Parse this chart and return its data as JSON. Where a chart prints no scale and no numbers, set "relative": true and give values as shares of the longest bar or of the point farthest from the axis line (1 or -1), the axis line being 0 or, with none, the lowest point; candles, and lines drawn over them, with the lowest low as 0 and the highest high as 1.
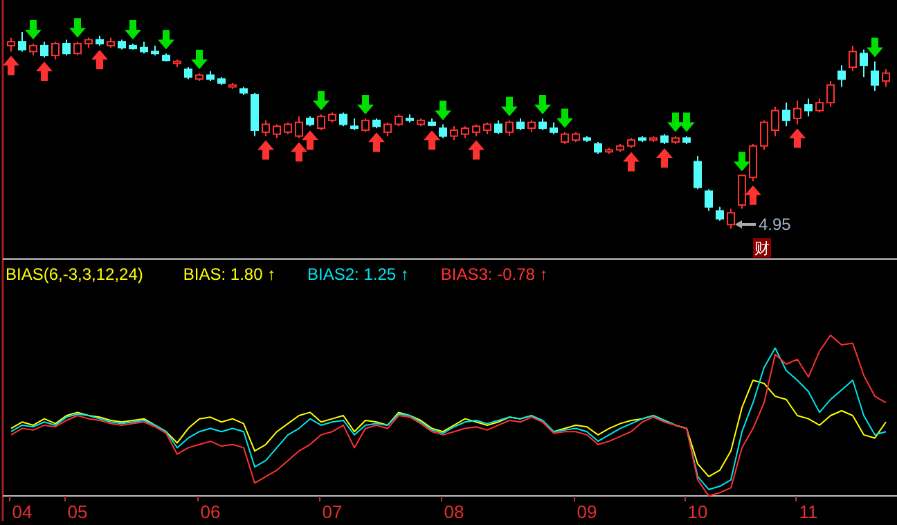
{
  "chart_data": [
    {
      "type": "candlestick",
      "relative": true,
      "tick_labels": false,
      "categories": [
        null,
        null,
        null,
        null,
        null,
        null,
        null,
        null,
        null,
        null,
        null,
        null,
        null,
        null,
        null,
        null,
        null,
        null,
        null,
        null,
        null,
        null,
        null,
        null,
        null,
        null,
        null,
        null,
        null,
        null,
        null,
        null,
        null,
        null,
        null,
        null,
        null,
        null,
        null,
        null,
        null,
        null,
        null,
        null,
        null,
        null,
        null,
        null,
        null,
        null,
        null,
        null,
        null,
        null,
        null,
        null,
        null,
        null,
        null,
        null,
        null,
        null,
        null,
        null,
        null,
        null,
        null,
        null,
        null,
        null,
        null,
        null,
        null,
        null,
        null,
        null,
        null,
        null,
        null,
        null
      ],
      "ohlc": [
        [
          0.93,
          0.97,
          0.9,
          0.95
        ],
        [
          0.95,
          1,
          0.9,
          0.91
        ],
        [
          0.9,
          0.94,
          0.88,
          0.93
        ],
        [
          0.93,
          0.95,
          0.87,
          0.88
        ],
        [
          0.88,
          0.95,
          0.86,
          0.94
        ],
        [
          0.94,
          0.96,
          0.88,
          0.89
        ],
        [
          0.89,
          0.95,
          0.88,
          0.94
        ],
        [
          0.94,
          0.97,
          0.92,
          0.96
        ],
        [
          0.96,
          0.98,
          0.93,
          0.94
        ],
        [
          0.93,
          0.97,
          0.92,
          0.95
        ],
        [
          0.95,
          0.96,
          0.91,
          0.92
        ],
        [
          0.93,
          0.94,
          0.91,
          0.915
        ],
        [
          0.92,
          0.95,
          0.89,
          0.9
        ],
        [
          0.9,
          0.93,
          0.88,
          0.89
        ],
        [
          0.88,
          0.89,
          0.85,
          0.855
        ],
        [
          0.84,
          0.86,
          0.82,
          0.85
        ],
        [
          0.81,
          0.82,
          0.76,
          0.77
        ],
        [
          0.76,
          0.79,
          0.75,
          0.78
        ],
        [
          0.78,
          0.8,
          0.75,
          0.76
        ],
        [
          0.76,
          0.77,
          0.73,
          0.74
        ],
        [
          0.72,
          0.74,
          0.71,
          0.73
        ],
        [
          0.71,
          0.72,
          0.68,
          0.69
        ],
        [
          0.68,
          0.69,
          0.47,
          0.5
        ],
        [
          0.49,
          0.55,
          0.47,
          0.53
        ],
        [
          0.48,
          0.53,
          0.46,
          0.52
        ],
        [
          0.49,
          0.54,
          0.48,
          0.53
        ],
        [
          0.47,
          0.57,
          0.46,
          0.54
        ],
        [
          0.56,
          0.57,
          0.52,
          0.53
        ],
        [
          0.51,
          0.58,
          0.5,
          0.57
        ],
        [
          0.55,
          0.59,
          0.54,
          0.58
        ],
        [
          0.58,
          0.59,
          0.52,
          0.53
        ],
        [
          0.52,
          0.56,
          0.5,
          0.51
        ],
        [
          0.5,
          0.56,
          0.49,
          0.55
        ],
        [
          0.55,
          0.56,
          0.51,
          0.52
        ],
        [
          0.49,
          0.54,
          0.47,
          0.53
        ],
        [
          0.53,
          0.58,
          0.52,
          0.57
        ],
        [
          0.56,
          0.58,
          0.54,
          0.55
        ],
        [
          0.53,
          0.56,
          0.52,
          0.55
        ],
        [
          0.54,
          0.56,
          0.52,
          0.525
        ],
        [
          0.51,
          0.53,
          0.46,
          0.47
        ],
        [
          0.47,
          0.52,
          0.45,
          0.5
        ],
        [
          0.48,
          0.52,
          0.46,
          0.51
        ],
        [
          0.49,
          0.53,
          0.47,
          0.52
        ],
        [
          0.5,
          0.54,
          0.48,
          0.53
        ],
        [
          0.53,
          0.55,
          0.48,
          0.49
        ],
        [
          0.49,
          0.55,
          0.47,
          0.54
        ],
        [
          0.54,
          0.56,
          0.5,
          0.51
        ],
        [
          0.51,
          0.55,
          0.49,
          0.54
        ],
        [
          0.54,
          0.56,
          0.5,
          0.51
        ],
        [
          0.51,
          0.54,
          0.48,
          0.49
        ],
        [
          0.44,
          0.49,
          0.43,
          0.48
        ],
        [
          0.45,
          0.49,
          0.44,
          0.48
        ],
        [
          0.46,
          0.47,
          0.44,
          0.45
        ],
        [
          0.43,
          0.44,
          0.38,
          0.39
        ],
        [
          0.39,
          0.41,
          0.38,
          0.4
        ],
        [
          0.4,
          0.43,
          0.39,
          0.42
        ],
        [
          0.42,
          0.46,
          0.41,
          0.45
        ],
        [
          0.46,
          0.47,
          0.44,
          0.45
        ],
        [
          0.45,
          0.47,
          0.44,
          0.46
        ],
        [
          0.47,
          0.48,
          0.43,
          0.44
        ],
        [
          0.44,
          0.47,
          0.43,
          0.46
        ],
        [
          0.46,
          0.47,
          0.43,
          0.44
        ],
        [
          0.34,
          0.37,
          0.2,
          0.21
        ],
        [
          0.19,
          0.2,
          0.09,
          0.11
        ],
        [
          0.09,
          0.11,
          0.04,
          0.05
        ],
        [
          0.02,
          0.1,
          0,
          0.08
        ],
        [
          0.12,
          0.27,
          0.1,
          0.27
        ],
        [
          0.26,
          0.43,
          0.24,
          0.42
        ],
        [
          0.42,
          0.55,
          0.4,
          0.54
        ],
        [
          0.5,
          0.62,
          0.47,
          0.6
        ],
        [
          0.6,
          0.64,
          0.52,
          0.55
        ],
        [
          0.56,
          0.65,
          0.53,
          0.61
        ],
        [
          0.63,
          0.66,
          0.57,
          0.6
        ],
        [
          0.6,
          0.66,
          0.59,
          0.64
        ],
        [
          0.64,
          0.75,
          0.62,
          0.73
        ],
        [
          0.8,
          0.83,
          0.72,
          0.76
        ],
        [
          0.82,
          0.93,
          0.8,
          0.9
        ],
        [
          0.89,
          0.91,
          0.77,
          0.83
        ],
        [
          0.8,
          0.85,
          0.7,
          0.73
        ],
        [
          0.75,
          0.81,
          0.72,
          0.79
        ]
      ],
      "annotations": [
        "4.95",
        "财"
      ]
    },
    {
      "type": "line",
      "relative": true,
      "tick_labels": "x",
      "title": "BIAS(6,-3,3,12,24)",
      "legend": "top left",
      "categories": [
        null,
        "04",
        null,
        null,
        null,
        null,
        "05",
        null,
        null,
        null,
        null,
        null,
        null,
        null,
        null,
        null,
        null,
        null,
        "06",
        null,
        null,
        null,
        null,
        null,
        null,
        null,
        null,
        null,
        null,
        "07",
        null,
        null,
        null,
        null,
        null,
        null,
        null,
        null,
        null,
        null,
        "08",
        null,
        null,
        null,
        null,
        null,
        null,
        null,
        null,
        null,
        null,
        null,
        "09",
        null,
        null,
        null,
        null,
        null,
        null,
        null,
        null,
        null,
        "10",
        null,
        null,
        null,
        null,
        null,
        null,
        null,
        null,
        null,
        "11",
        null,
        null,
        null,
        null,
        null,
        null,
        null
      ],
      "series": [
        {
          "name": "BIAS: 1.80 ↑",
          "color": "#ffff00",
          "values": [
            0.42,
            0.46,
            0.44,
            0.48,
            0.45,
            0.5,
            0.52,
            0.5,
            0.49,
            0.47,
            0.46,
            0.47,
            0.48,
            0.44,
            0.4,
            0.33,
            0.42,
            0.48,
            0.49,
            0.46,
            0.48,
            0.45,
            0.28,
            0.32,
            0.4,
            0.45,
            0.5,
            0.52,
            0.46,
            0.48,
            0.5,
            0.4,
            0.47,
            0.46,
            0.44,
            0.52,
            0.5,
            0.47,
            0.42,
            0.4,
            0.44,
            0.48,
            0.46,
            0.44,
            0.46,
            0.49,
            0.48,
            0.5,
            0.46,
            0.4,
            0.42,
            0.44,
            0.43,
            0.38,
            0.42,
            0.45,
            0.47,
            0.48,
            0.5,
            0.47,
            0.44,
            0.42,
            0.2,
            0.12,
            0.16,
            0.28,
            0.55,
            0.72,
            0.7,
            0.62,
            0.6,
            0.5,
            0.48,
            0.44,
            0.5,
            0.53,
            0.5,
            0.38,
            0.36,
            0.46
          ]
        },
        {
          "name": "BIAS2: 1.25 ↑",
          "color": "#00e5ee",
          "values": [
            0.4,
            0.44,
            0.43,
            0.46,
            0.44,
            0.49,
            0.51,
            0.5,
            0.48,
            0.46,
            0.45,
            0.46,
            0.47,
            0.44,
            0.4,
            0.3,
            0.36,
            0.4,
            0.42,
            0.4,
            0.42,
            0.4,
            0.18,
            0.22,
            0.3,
            0.38,
            0.42,
            0.48,
            0.44,
            0.46,
            0.47,
            0.38,
            0.44,
            0.45,
            0.44,
            0.51,
            0.5,
            0.46,
            0.41,
            0.39,
            0.43,
            0.46,
            0.47,
            0.45,
            0.47,
            0.49,
            0.48,
            0.5,
            0.47,
            0.4,
            0.41,
            0.42,
            0.4,
            0.34,
            0.38,
            0.42,
            0.45,
            0.48,
            0.5,
            0.47,
            0.44,
            0.42,
            0.12,
            0.04,
            0.06,
            0.1,
            0.4,
            0.58,
            0.8,
            0.92,
            0.78,
            0.72,
            0.65,
            0.52,
            0.6,
            0.66,
            0.72,
            0.5,
            0.38,
            0.4
          ]
        },
        {
          "name": "BIAS3: -0.78 ↑",
          "color": "#ff3232",
          "values": [
            0.38,
            0.42,
            0.41,
            0.44,
            0.43,
            0.47,
            0.5,
            0.48,
            0.47,
            0.45,
            0.44,
            0.45,
            0.46,
            0.43,
            0.39,
            0.26,
            0.3,
            0.32,
            0.34,
            0.31,
            0.32,
            0.3,
            0.08,
            0.12,
            0.16,
            0.22,
            0.28,
            0.32,
            0.38,
            0.4,
            0.44,
            0.3,
            0.42,
            0.44,
            0.42,
            0.5,
            0.49,
            0.45,
            0.4,
            0.38,
            0.4,
            0.42,
            0.43,
            0.41,
            0.44,
            0.47,
            0.46,
            0.49,
            0.46,
            0.39,
            0.4,
            0.4,
            0.38,
            0.32,
            0.34,
            0.37,
            0.4,
            0.46,
            0.49,
            0.46,
            0.44,
            0.42,
            0.1,
            0,
            0.02,
            0.05,
            0.3,
            0.42,
            0.58,
            0.88,
            0.82,
            0.85,
            0.74,
            0.9,
            1,
            0.94,
            0.95,
            0.75,
            0.62,
            0.58
          ]
        }
      ]
    }
  ]
}
